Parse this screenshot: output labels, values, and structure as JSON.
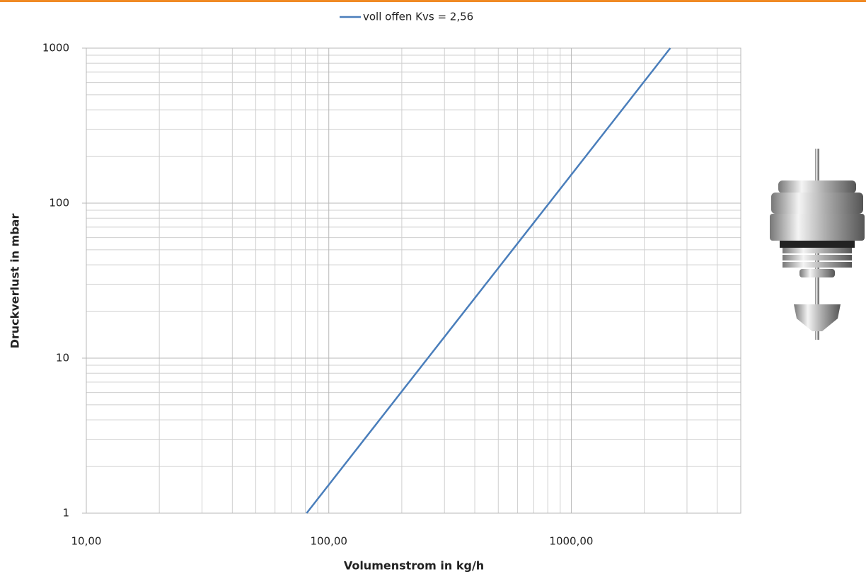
{
  "chart_data": {
    "type": "line",
    "xlabel": "Volumenstrom in kg/h",
    "ylabel": "Druckverlust in mbar",
    "x": [
      81,
      256,
      810,
      2560
    ],
    "series": [
      {
        "name": "voll offen Kvs = 2,56",
        "color": "#4a7ebb",
        "values": [
          1,
          10,
          100,
          1000
        ]
      }
    ],
    "xlim": [
      10,
      5000
    ],
    "ylim": [
      1,
      1000
    ],
    "xticks": [
      {
        "value": 10,
        "label": "10,00"
      },
      {
        "value": 100,
        "label": "100,00"
      },
      {
        "value": 1000,
        "label": "1000,00"
      }
    ],
    "yticks": [
      1,
      10,
      100,
      1000
    ],
    "x_minor_ticks": [
      20,
      30,
      40,
      50,
      60,
      70,
      80,
      90,
      200,
      300,
      400,
      500,
      600,
      700,
      800,
      900,
      2000,
      3000,
      4000
    ],
    "y_minor_ticks": [
      2,
      3,
      4,
      5,
      6,
      7,
      8,
      9,
      20,
      30,
      40,
      50,
      60,
      70,
      80,
      90,
      200,
      300,
      400,
      500,
      600,
      700,
      800,
      900
    ],
    "xscale": "log",
    "yscale": "log",
    "grid": true,
    "legend": "top"
  }
}
